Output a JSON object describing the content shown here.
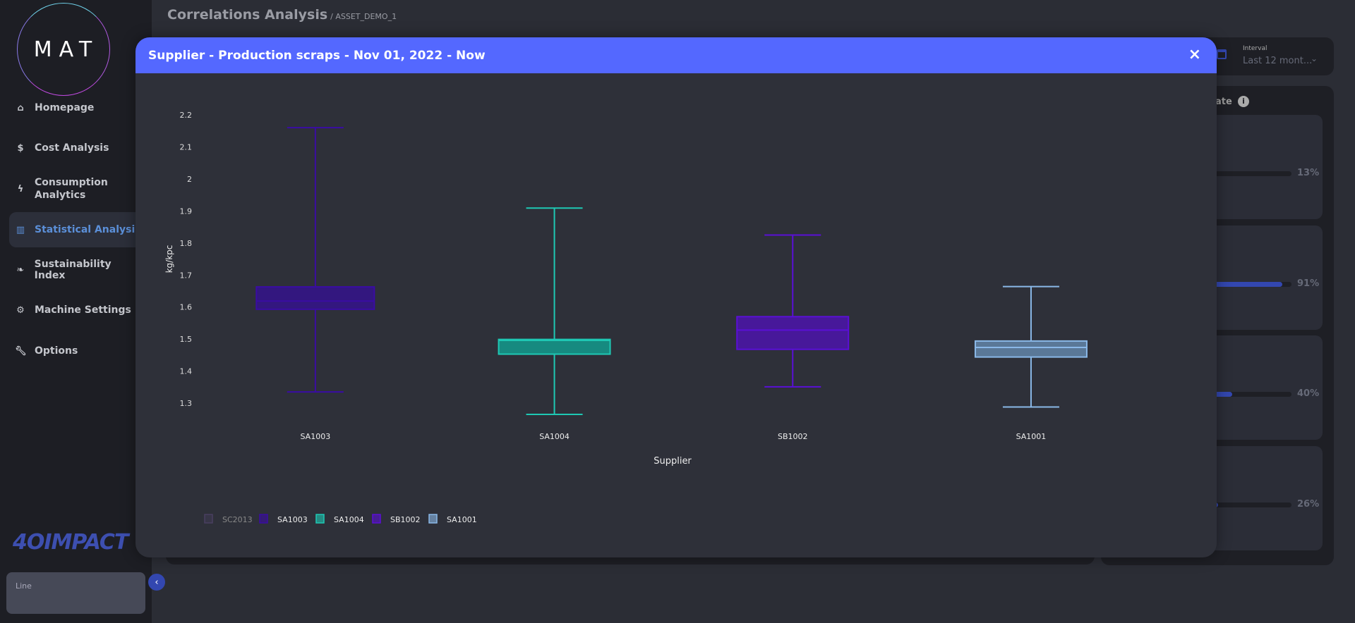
{
  "sidebar": {
    "logo": "MAT",
    "items": [
      {
        "label": "Homepage",
        "icon": "home-icon"
      },
      {
        "label": "Cost Analysis",
        "icon": "money-bag-icon"
      },
      {
        "label": "Consumption Analytics",
        "icon": "bolt-icon"
      },
      {
        "label": "Statistical Analysis",
        "icon": "chart-icon",
        "active": true
      },
      {
        "label": "Sustainability Index",
        "icon": "leaf-icon"
      },
      {
        "label": "Machine Settings",
        "icon": "gear-icon"
      },
      {
        "label": "Options",
        "icon": "wrench-icon"
      }
    ],
    "brand": "4OIMPACT",
    "line_card_label": "Line"
  },
  "header": {
    "title": "Correlations Analysis",
    "breadcrumb": "/ ASSET_DEMO_1"
  },
  "interval": {
    "label": "Interval",
    "value": "Last 12 mont..."
  },
  "side_panel": {
    "title_fragment": "ate",
    "items": [
      {
        "percent": "13%",
        "value": 13
      },
      {
        "percent": "91%",
        "value": 91
      },
      {
        "percent": "40%",
        "value": 40
      },
      {
        "percent": "26%",
        "value": 26
      }
    ]
  },
  "modal": {
    "title": "Supplier - Production scraps - Nov 01, 2022 - Now",
    "close": "×"
  },
  "chart_data": {
    "type": "box",
    "xlabel": "Supplier",
    "ylabel": "kg/kpc",
    "ylim": [
      1.25,
      2.24
    ],
    "yticks": [
      "1.3",
      "1.4",
      "1.5",
      "1.6",
      "1.7",
      "1.8",
      "1.9",
      "2",
      "2.1",
      "2.2"
    ],
    "categories": [
      "SA1003",
      "SA1004",
      "SB1002",
      "SA1001"
    ],
    "series": [
      {
        "name": "SA1003",
        "min": 1.335,
        "q1": 1.593,
        "median": 1.619,
        "q3": 1.663,
        "max": 2.16,
        "stroke": "#3a0ca3",
        "fill": "#33177f"
      },
      {
        "name": "SA1004",
        "min": 1.265,
        "q1": 1.453,
        "median": 1.496,
        "q3": 1.499,
        "max": 1.909,
        "stroke": "#1ec8b4",
        "fill": "#168a80"
      },
      {
        "name": "SB1002",
        "min": 1.351,
        "q1": 1.468,
        "median": 1.528,
        "q3": 1.57,
        "max": 1.825,
        "stroke": "#5a0fd6",
        "fill": "#47189a"
      },
      {
        "name": "SA1001",
        "min": 1.288,
        "q1": 1.444,
        "median": 1.474,
        "q3": 1.494,
        "max": 1.664,
        "stroke": "#8ab8e8",
        "fill": "#5a7898"
      }
    ],
    "legend": [
      {
        "name": "SC2013",
        "color": "#5a4a7a",
        "hidden": true
      },
      {
        "name": "SA1003",
        "color": "#3a0ca3"
      },
      {
        "name": "SA1004",
        "color": "#1ec8b4"
      },
      {
        "name": "SB1002",
        "color": "#5a0fd6"
      },
      {
        "name": "SA1001",
        "color": "#8ab8e8"
      }
    ],
    "legend_position": "bottom-left",
    "grid": false
  }
}
